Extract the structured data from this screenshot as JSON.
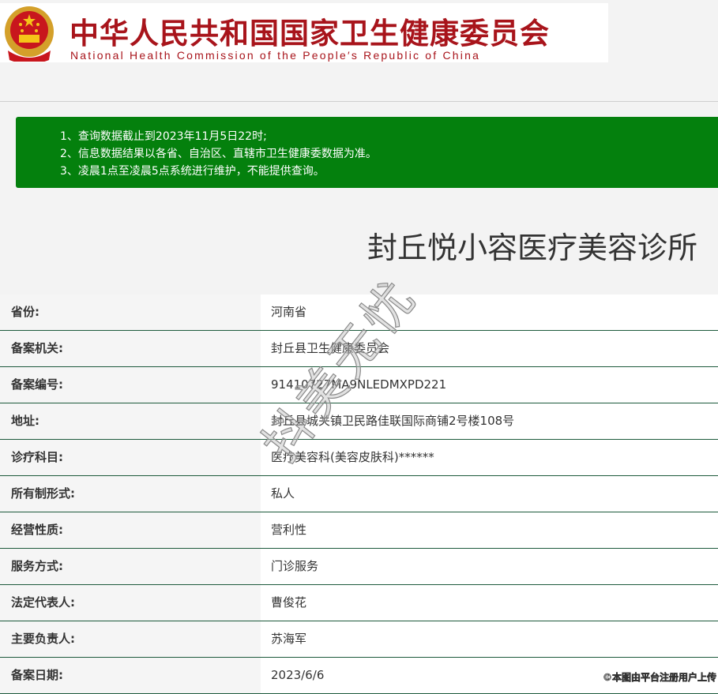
{
  "header": {
    "title_cn": "中华人民共和国国家卫生健康委员会",
    "title_en": "National Health Commission of the People′s Republic of China",
    "emblem_icon": "national-emblem-icon"
  },
  "notice": {
    "background": "#04800d",
    "lines": [
      "1、查询数据截止到2023年11月5日22时;",
      "2、信息数据结果以各省、自治区、直辖市卫生健康委数据为准。",
      "3、凌晨1点至凌晨5点系统进行维护，不能提供查询。"
    ]
  },
  "clinic_name": "封丘悦小容医疗美容诊所",
  "details": [
    {
      "label": "省份:",
      "value": "河南省"
    },
    {
      "label": "备案机关:",
      "value": "封丘县卫生健康委员会"
    },
    {
      "label": "备案编号:",
      "value": "91410727MA9NLEDMXPD221"
    },
    {
      "label": "地址:",
      "value": "封丘县城关镇卫民路佳联国际商铺2号楼108号"
    },
    {
      "label": "诊疗科目:",
      "value": "医疗美容科(美容皮肤科)******"
    },
    {
      "label": "所有制形式:",
      "value": "私人"
    },
    {
      "label": "经营性质:",
      "value": "营利性"
    },
    {
      "label": "服务方式:",
      "value": "门诊服务"
    },
    {
      "label": "法定代表人:",
      "value": "曹俊花"
    },
    {
      "label": "主要负责人:",
      "value": "苏海军"
    },
    {
      "label": "备案日期:",
      "value": "2023/6/6"
    }
  ],
  "watermark": "抖美无忧",
  "credit": "©本图由平台注册用户上传"
}
